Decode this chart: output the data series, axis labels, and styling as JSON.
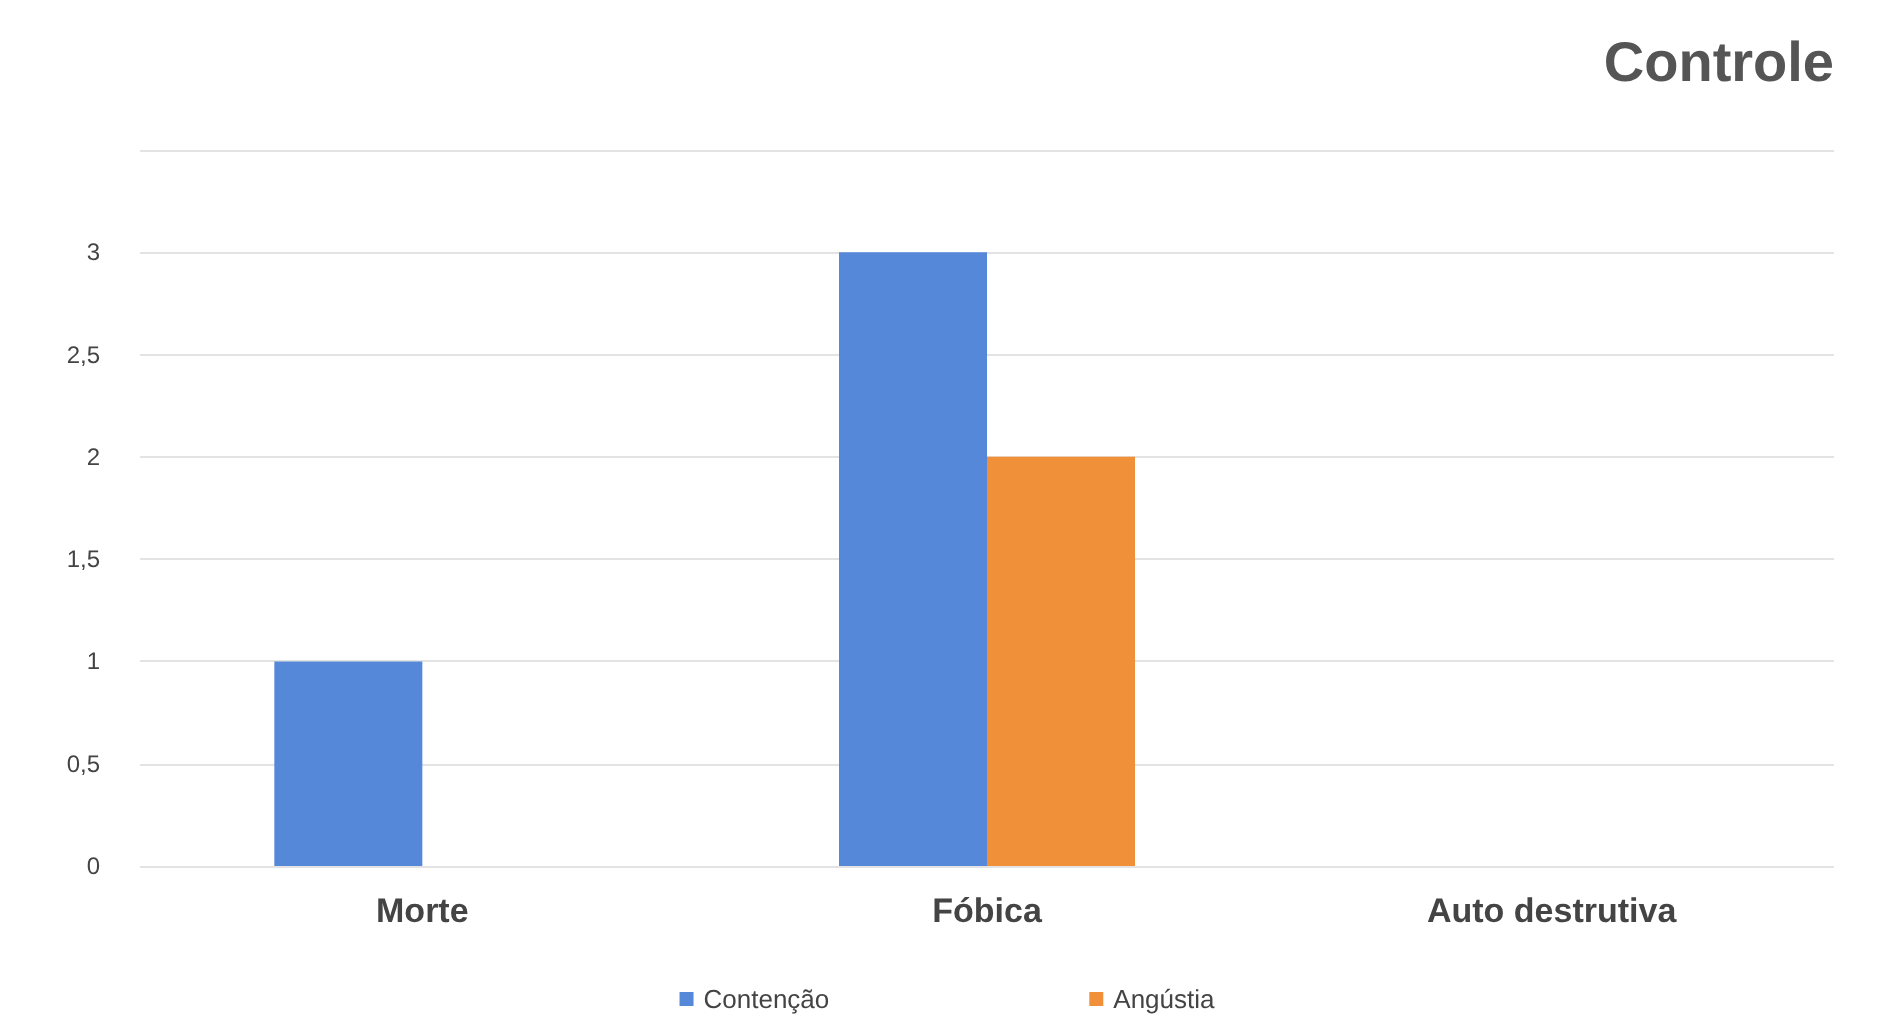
{
  "chart_data": {
    "type": "bar",
    "title": "Controle",
    "categories": [
      "Morte",
      "Fóbica",
      "Auto destrutiva"
    ],
    "series": [
      {
        "name": "Contenção",
        "color": "#5588d8",
        "values": [
          1,
          3,
          0
        ]
      },
      {
        "name": "Angústia",
        "color": "#f0913a",
        "values": [
          0,
          2,
          0
        ]
      }
    ],
    "ylim": [
      0,
      3.5
    ],
    "yticks": [
      0,
      {
        "value": 0.5,
        "label": "0,5"
      },
      1,
      {
        "value": 1.5,
        "label": "1,5"
      },
      2,
      {
        "value": 2.5,
        "label": "2,5"
      },
      3,
      {
        "value": 3.5,
        "label": null
      }
    ],
    "grid": true,
    "legend": "bottom"
  }
}
